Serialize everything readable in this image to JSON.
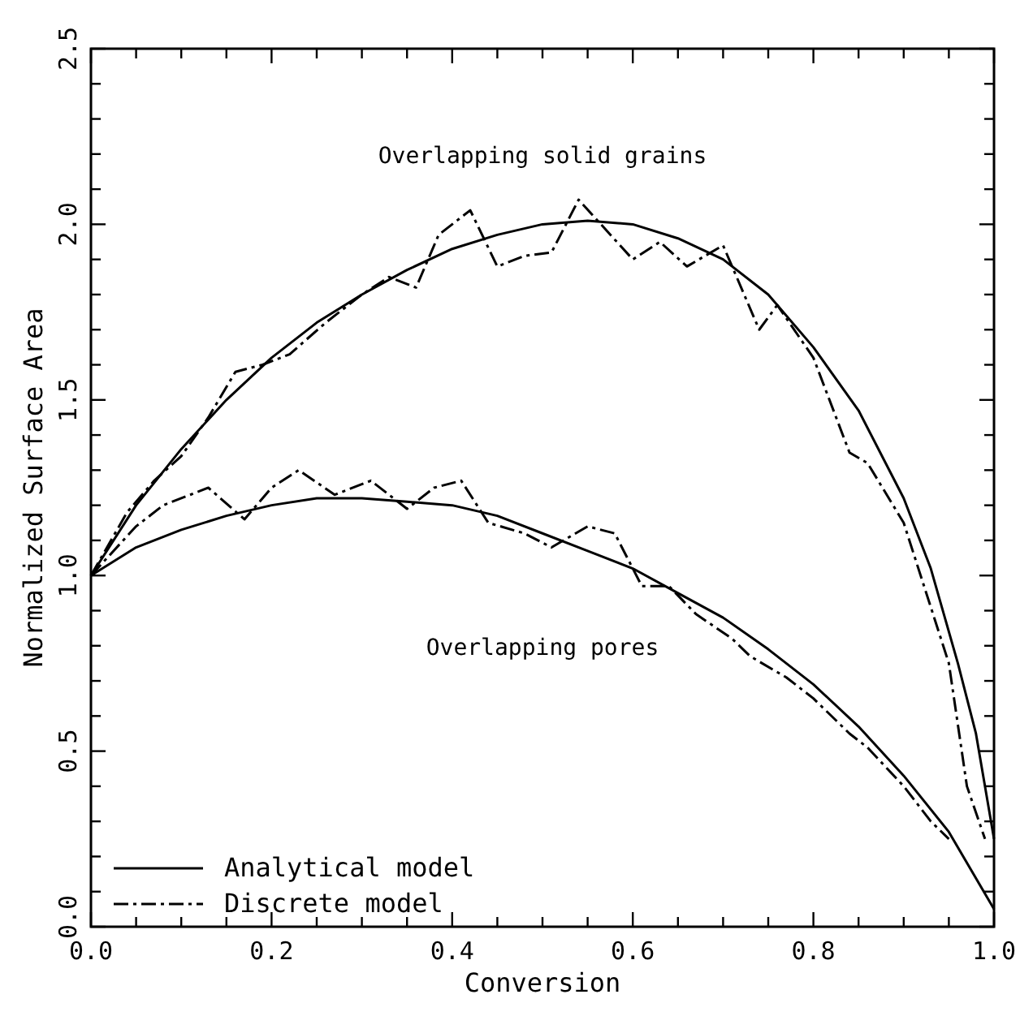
{
  "chart_data": {
    "type": "line",
    "xlabel": "Conversion",
    "ylabel": "Normalized Surface Area",
    "xlim": [
      0,
      1
    ],
    "ylim": [
      0,
      2.5
    ],
    "xticks": [
      {
        "value": 0,
        "label": "0.0"
      },
      {
        "value": 0.05,
        "label": null
      },
      {
        "value": 0.1,
        "label": null
      },
      {
        "value": 0.15,
        "label": null
      },
      {
        "value": 0.2,
        "label": "0.2"
      },
      {
        "value": 0.25,
        "label": null
      },
      {
        "value": 0.3,
        "label": null
      },
      {
        "value": 0.35,
        "label": null
      },
      {
        "value": 0.4,
        "label": "0.4"
      },
      {
        "value": 0.45,
        "label": null
      },
      {
        "value": 0.5,
        "label": null
      },
      {
        "value": 0.55,
        "label": null
      },
      {
        "value": 0.6,
        "label": "0.6"
      },
      {
        "value": 0.65,
        "label": null
      },
      {
        "value": 0.7,
        "label": null
      },
      {
        "value": 0.75,
        "label": null
      },
      {
        "value": 0.8,
        "label": "0.8"
      },
      {
        "value": 0.85,
        "label": null
      },
      {
        "value": 0.9,
        "label": null
      },
      {
        "value": 0.95,
        "label": null
      },
      {
        "value": 1,
        "label": "1.0"
      }
    ],
    "yticks": [
      {
        "value": 0,
        "label": "0.0"
      },
      {
        "value": 0.1,
        "label": null
      },
      {
        "value": 0.2,
        "label": null
      },
      {
        "value": 0.3,
        "label": null
      },
      {
        "value": 0.4,
        "label": null
      },
      {
        "value": 0.5,
        "label": "0.5"
      },
      {
        "value": 0.6,
        "label": null
      },
      {
        "value": 0.7,
        "label": null
      },
      {
        "value": 0.8,
        "label": null
      },
      {
        "value": 0.9,
        "label": null
      },
      {
        "value": 1,
        "label": "1.0"
      },
      {
        "value": 1.1,
        "label": null
      },
      {
        "value": 1.2,
        "label": null
      },
      {
        "value": 1.3,
        "label": null
      },
      {
        "value": 1.4,
        "label": null
      },
      {
        "value": 1.5,
        "label": "1.5"
      },
      {
        "value": 1.6,
        "label": null
      },
      {
        "value": 1.7,
        "label": null
      },
      {
        "value": 1.8,
        "label": null
      },
      {
        "value": 1.9,
        "label": null
      },
      {
        "value": 2,
        "label": "2.0"
      },
      {
        "value": 2.1,
        "label": null
      },
      {
        "value": 2.2,
        "label": null
      },
      {
        "value": 2.3,
        "label": null
      },
      {
        "value": 2.4,
        "label": null
      },
      {
        "value": 2.5,
        "label": "2.5"
      }
    ],
    "grid": false,
    "legend": "bottom left",
    "marker": "none",
    "annotations": [
      "Overlapping solid grains",
      "Overlapping pores"
    ],
    "series": [
      {
        "name": "Analytical model",
        "color": "#000000",
        "line_style": "solid",
        "x": [
          0,
          0.05,
          0.1,
          0.15,
          0.2,
          0.25,
          0.3,
          0.35,
          0.4,
          0.45,
          0.5,
          0.55,
          0.6,
          0.65,
          0.7,
          0.75,
          0.8,
          0.85,
          0.9,
          0.93,
          0.96,
          0.98,
          1.0
        ],
        "values": [
          1.0,
          1.2,
          1.36,
          1.5,
          1.62,
          1.72,
          1.8,
          1.87,
          1.93,
          1.97,
          2.0,
          2.01,
          2.0,
          1.96,
          1.9,
          1.8,
          1.65,
          1.47,
          1.22,
          1.02,
          0.75,
          0.55,
          0.25
        ]
      },
      {
        "name": "Discrete model",
        "color": "#000000",
        "line_style": "dashed",
        "x": [
          0,
          0.04,
          0.07,
          0.1,
          0.13,
          0.16,
          0.19,
          0.22,
          0.26,
          0.3,
          0.33,
          0.36,
          0.385,
          0.42,
          0.45,
          0.48,
          0.51,
          0.54,
          0.6,
          0.63,
          0.66,
          0.7,
          0.74,
          0.76,
          0.8,
          0.84,
          0.86,
          0.9,
          0.95,
          0.97,
          0.99
        ],
        "values": [
          1.0,
          1.18,
          1.27,
          1.34,
          1.45,
          1.58,
          1.6,
          1.63,
          1.72,
          1.8,
          1.85,
          1.82,
          1.97,
          2.04,
          1.88,
          1.91,
          1.92,
          2.07,
          1.9,
          1.95,
          1.88,
          1.94,
          1.7,
          1.77,
          1.62,
          1.35,
          1.32,
          1.15,
          0.75,
          0.4,
          0.25
        ]
      },
      {
        "color": "#000000",
        "line_style": "solid",
        "x": [
          0,
          0.05,
          0.1,
          0.15,
          0.2,
          0.25,
          0.3,
          0.35,
          0.4,
          0.45,
          0.5,
          0.55,
          0.6,
          0.65,
          0.7,
          0.75,
          0.8,
          0.85,
          0.9,
          0.95,
          1.0
        ],
        "values": [
          1.0,
          1.08,
          1.13,
          1.17,
          1.2,
          1.22,
          1.22,
          1.21,
          1.2,
          1.17,
          1.12,
          1.07,
          1.02,
          0.95,
          0.88,
          0.79,
          0.69,
          0.57,
          0.43,
          0.27,
          0.05
        ]
      },
      {
        "color": "#000000",
        "line_style": "dashed",
        "x": [
          0,
          0.05,
          0.08,
          0.13,
          0.17,
          0.2,
          0.23,
          0.27,
          0.31,
          0.35,
          0.38,
          0.41,
          0.44,
          0.48,
          0.51,
          0.55,
          0.58,
          0.61,
          0.64,
          0.67,
          0.71,
          0.73,
          0.77,
          0.8,
          0.84,
          0.86,
          0.9,
          0.93,
          0.95
        ],
        "values": [
          1.0,
          1.14,
          1.2,
          1.25,
          1.16,
          1.25,
          1.3,
          1.23,
          1.27,
          1.19,
          1.25,
          1.27,
          1.15,
          1.12,
          1.08,
          1.14,
          1.12,
          0.97,
          0.97,
          0.89,
          0.82,
          0.77,
          0.71,
          0.65,
          0.55,
          0.51,
          0.4,
          0.3,
          0.25
        ]
      }
    ]
  }
}
